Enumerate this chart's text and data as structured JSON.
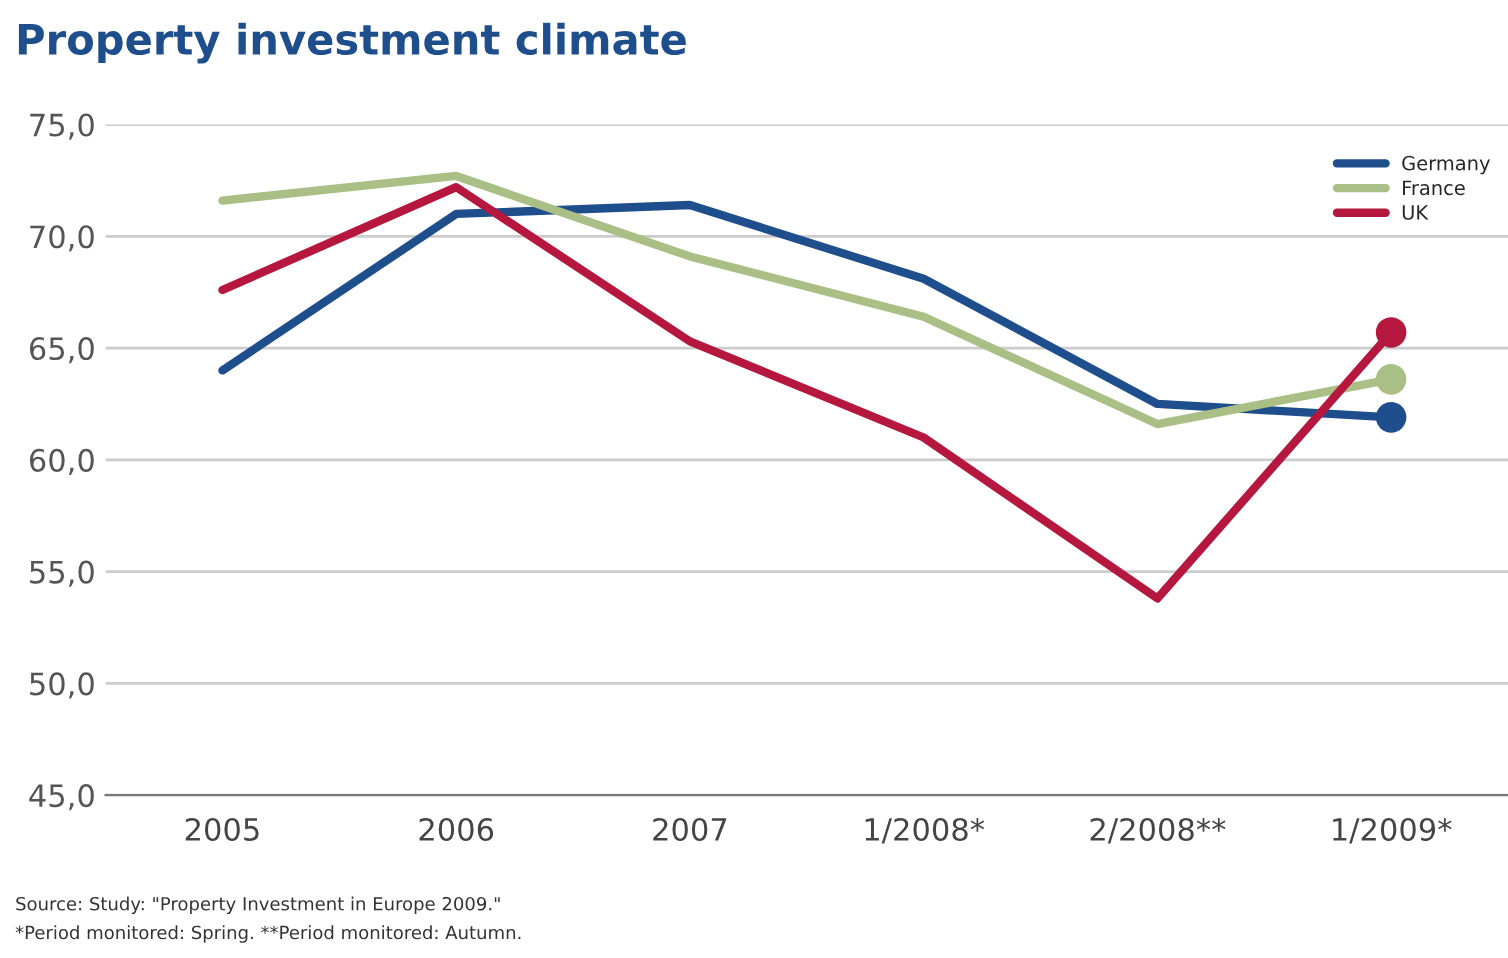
{
  "chart_data": {
    "type": "line",
    "title": "Property investment climate",
    "categories": [
      "2005",
      "2006",
      "2007",
      "1/2008*",
      "2/2008**",
      "1/2009*"
    ],
    "series": [
      {
        "name": "Germany",
        "color": "#1f4e8c",
        "values": [
          64.0,
          71.0,
          71.4,
          68.1,
          62.5,
          61.9
        ]
      },
      {
        "name": "France",
        "color": "#a9bf85",
        "values": [
          71.6,
          72.7,
          69.1,
          66.4,
          61.6,
          63.6
        ]
      },
      {
        "name": "UK",
        "color": "#b5173f",
        "values": [
          67.6,
          72.2,
          65.3,
          61.0,
          53.8,
          65.7
        ]
      }
    ],
    "ylim": [
      45,
      75
    ],
    "yticks": [
      {
        "value": 45,
        "label": "45,0"
      },
      {
        "value": 50,
        "label": "50,0"
      },
      {
        "value": 55,
        "label": "55,0"
      },
      {
        "value": 60,
        "label": "60,0"
      },
      {
        "value": 65,
        "label": "65,0"
      },
      {
        "value": 70,
        "label": "70,0"
      },
      {
        "value": 75,
        "label": "75,0"
      }
    ],
    "grid": "y",
    "legend": "top right",
    "line_style": "solid",
    "annotations": [
      "Source: Study: \"Property Investment in Europe 2009.\"",
      "*Period monitored: Spring. **Period monitored: Autumn."
    ]
  }
}
